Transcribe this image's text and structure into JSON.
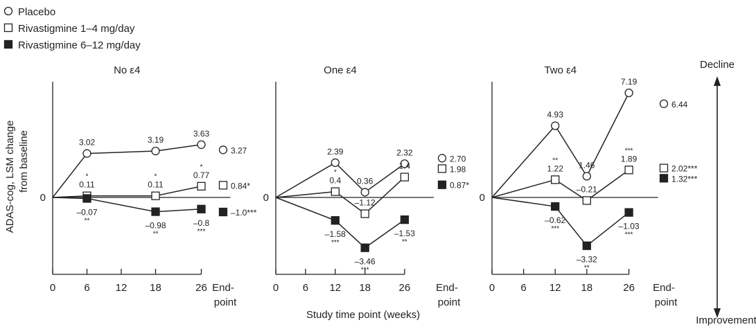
{
  "legend": [
    {
      "marker": "open-circle",
      "label": "Placebo"
    },
    {
      "marker": "open-square",
      "label": "Rivastigmine 1–4 mg/day"
    },
    {
      "marker": "filled-square",
      "label": "Rivastigmine 6–12 mg/day"
    }
  ],
  "ylabel_line1": "ADAS-cog, LSM change",
  "ylabel_line2": "from baseline",
  "xlabel": "Study time point (weeks)",
  "direction_up": "Decline",
  "direction_down": "Improvement",
  "endpoint_label_line1": "End-",
  "endpoint_label_line2": "point",
  "y_zero_label": "0",
  "chart_data": [
    {
      "type": "line",
      "title": "No ε4",
      "x": [
        0,
        6,
        18,
        26
      ],
      "x_ticks": [
        "0",
        "6",
        "12",
        "18",
        "26"
      ],
      "series": [
        {
          "name": "Placebo",
          "marker": "open-circle",
          "x": [
            0,
            6,
            18,
            26
          ],
          "values": [
            0,
            3.02,
            3.19,
            3.63
          ],
          "labels": [
            "",
            "3.02",
            "3.19",
            "3.63"
          ],
          "sig": [
            "",
            "",
            "",
            ""
          ],
          "endpoint": 3.27,
          "endpoint_label": "3.27"
        },
        {
          "name": "Rivastigmine 1–4 mg/day",
          "marker": "open-square",
          "x": [
            0,
            6,
            18,
            26
          ],
          "values": [
            0,
            0.11,
            0.11,
            0.77
          ],
          "labels": [
            "",
            "0.11",
            "0.11",
            "0.77"
          ],
          "sig": [
            "",
            "*",
            "*",
            "*"
          ],
          "endpoint": 0.84,
          "endpoint_label": "0.84*"
        },
        {
          "name": "Rivastigmine 6–12 mg/day",
          "marker": "filled-square",
          "x": [
            0,
            6,
            18,
            26
          ],
          "values": [
            0,
            -0.07,
            -0.98,
            -0.8
          ],
          "labels": [
            "",
            "–0.07",
            "–0.98",
            "–0.8"
          ],
          "sig": [
            "",
            "**",
            "**",
            "***"
          ],
          "endpoint": -1.0,
          "endpoint_label": "–1.0***"
        }
      ]
    },
    {
      "type": "line",
      "title": "One ε4",
      "x": [
        0,
        12,
        18,
        26
      ],
      "x_ticks": [
        "0",
        "6",
        "12",
        "18",
        "26"
      ],
      "series": [
        {
          "name": "Placebo",
          "marker": "open-circle",
          "x": [
            0,
            12,
            18,
            26
          ],
          "values": [
            0,
            2.39,
            0.36,
            2.32
          ],
          "labels": [
            "",
            "2.39",
            "0.36",
            "2.32"
          ],
          "sig": [
            "",
            "",
            "",
            ""
          ],
          "endpoint": 2.7,
          "endpoint_label": "2.70"
        },
        {
          "name": "Rivastigmine 1–4 mg/day",
          "marker": "open-square",
          "x": [
            0,
            12,
            18,
            26
          ],
          "values": [
            0,
            0.4,
            -1.12,
            1.4
          ],
          "labels": [
            "",
            "0.4",
            "–1.12",
            "1.4"
          ],
          "sig": [
            "",
            "*",
            "",
            ""
          ],
          "endpoint": 1.98,
          "endpoint_label": "1.98"
        },
        {
          "name": "Rivastigmine 6–12 mg/day",
          "marker": "filled-square",
          "x": [
            0,
            12,
            18,
            26
          ],
          "values": [
            0,
            -1.58,
            -3.46,
            -1.53
          ],
          "labels": [
            "",
            "–1.58",
            "–3.46",
            "–1.53"
          ],
          "sig": [
            "",
            "***",
            "***",
            "**"
          ],
          "endpoint": 0.87,
          "endpoint_label": "0.87*"
        }
      ]
    },
    {
      "type": "line",
      "title": "Two ε4",
      "x": [
        0,
        12,
        18,
        26
      ],
      "x_ticks": [
        "0",
        "6",
        "12",
        "18",
        "26"
      ],
      "series": [
        {
          "name": "Placebo",
          "marker": "open-circle",
          "x": [
            0,
            12,
            18,
            26
          ],
          "values": [
            0,
            4.93,
            1.46,
            7.19
          ],
          "labels": [
            "",
            "4.93",
            "1.46",
            "7.19"
          ],
          "sig": [
            "",
            "",
            "",
            ""
          ],
          "endpoint": 6.44,
          "endpoint_label": "6.44"
        },
        {
          "name": "Rivastigmine 1–4 mg/day",
          "marker": "open-square",
          "x": [
            0,
            12,
            18,
            26
          ],
          "values": [
            0,
            1.22,
            -0.21,
            1.89
          ],
          "labels": [
            "",
            "1.22",
            "–0.21",
            "1.89"
          ],
          "sig": [
            "",
            "**",
            "",
            "***"
          ],
          "endpoint": 2.02,
          "endpoint_label": "2.02***"
        },
        {
          "name": "Rivastigmine 6–12 mg/day",
          "marker": "filled-square",
          "x": [
            0,
            12,
            18,
            26
          ],
          "values": [
            0,
            -0.62,
            -3.32,
            -1.03
          ],
          "labels": [
            "",
            "–0.62",
            "–3.32",
            "–1.03"
          ],
          "sig": [
            "",
            "***",
            "**",
            "***"
          ],
          "endpoint": 1.32,
          "endpoint_label": "1.32***"
        }
      ]
    }
  ]
}
